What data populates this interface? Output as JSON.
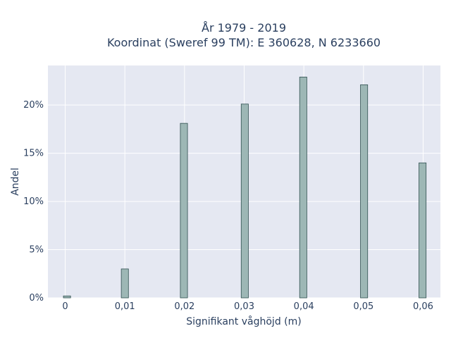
{
  "chart_data": {
    "type": "bar",
    "title_lines": [
      "År 1979 - 2019",
      "Koordinat (Sweref 99 TM): E 360628, N 6233660"
    ],
    "xlabel": "Signifikant våghöjd (m)",
    "ylabel": "Andel",
    "x_ticks": [
      "0",
      "0,01",
      "0,02",
      "0,03",
      "0,04",
      "0,05",
      "0,06"
    ],
    "y_ticks": [
      "0%",
      "5%",
      "10%",
      "15%",
      "20%"
    ],
    "x": [
      0.0003,
      0.01,
      0.0199,
      0.0301,
      0.0399,
      0.0501,
      0.0599
    ],
    "values": [
      0.2,
      3.0,
      18.1,
      20.1,
      22.9,
      22.1,
      14.0
    ],
    "unit": "%",
    "xlim": [
      -0.0029,
      0.0629
    ],
    "ylim": [
      0,
      24.1
    ],
    "grid": true,
    "colors": {
      "plot_bg": "#e5e8f2",
      "bar_fill": "#9db7b5",
      "bar_stroke": "#2f4f4f",
      "text": "#2a3f5f"
    }
  }
}
